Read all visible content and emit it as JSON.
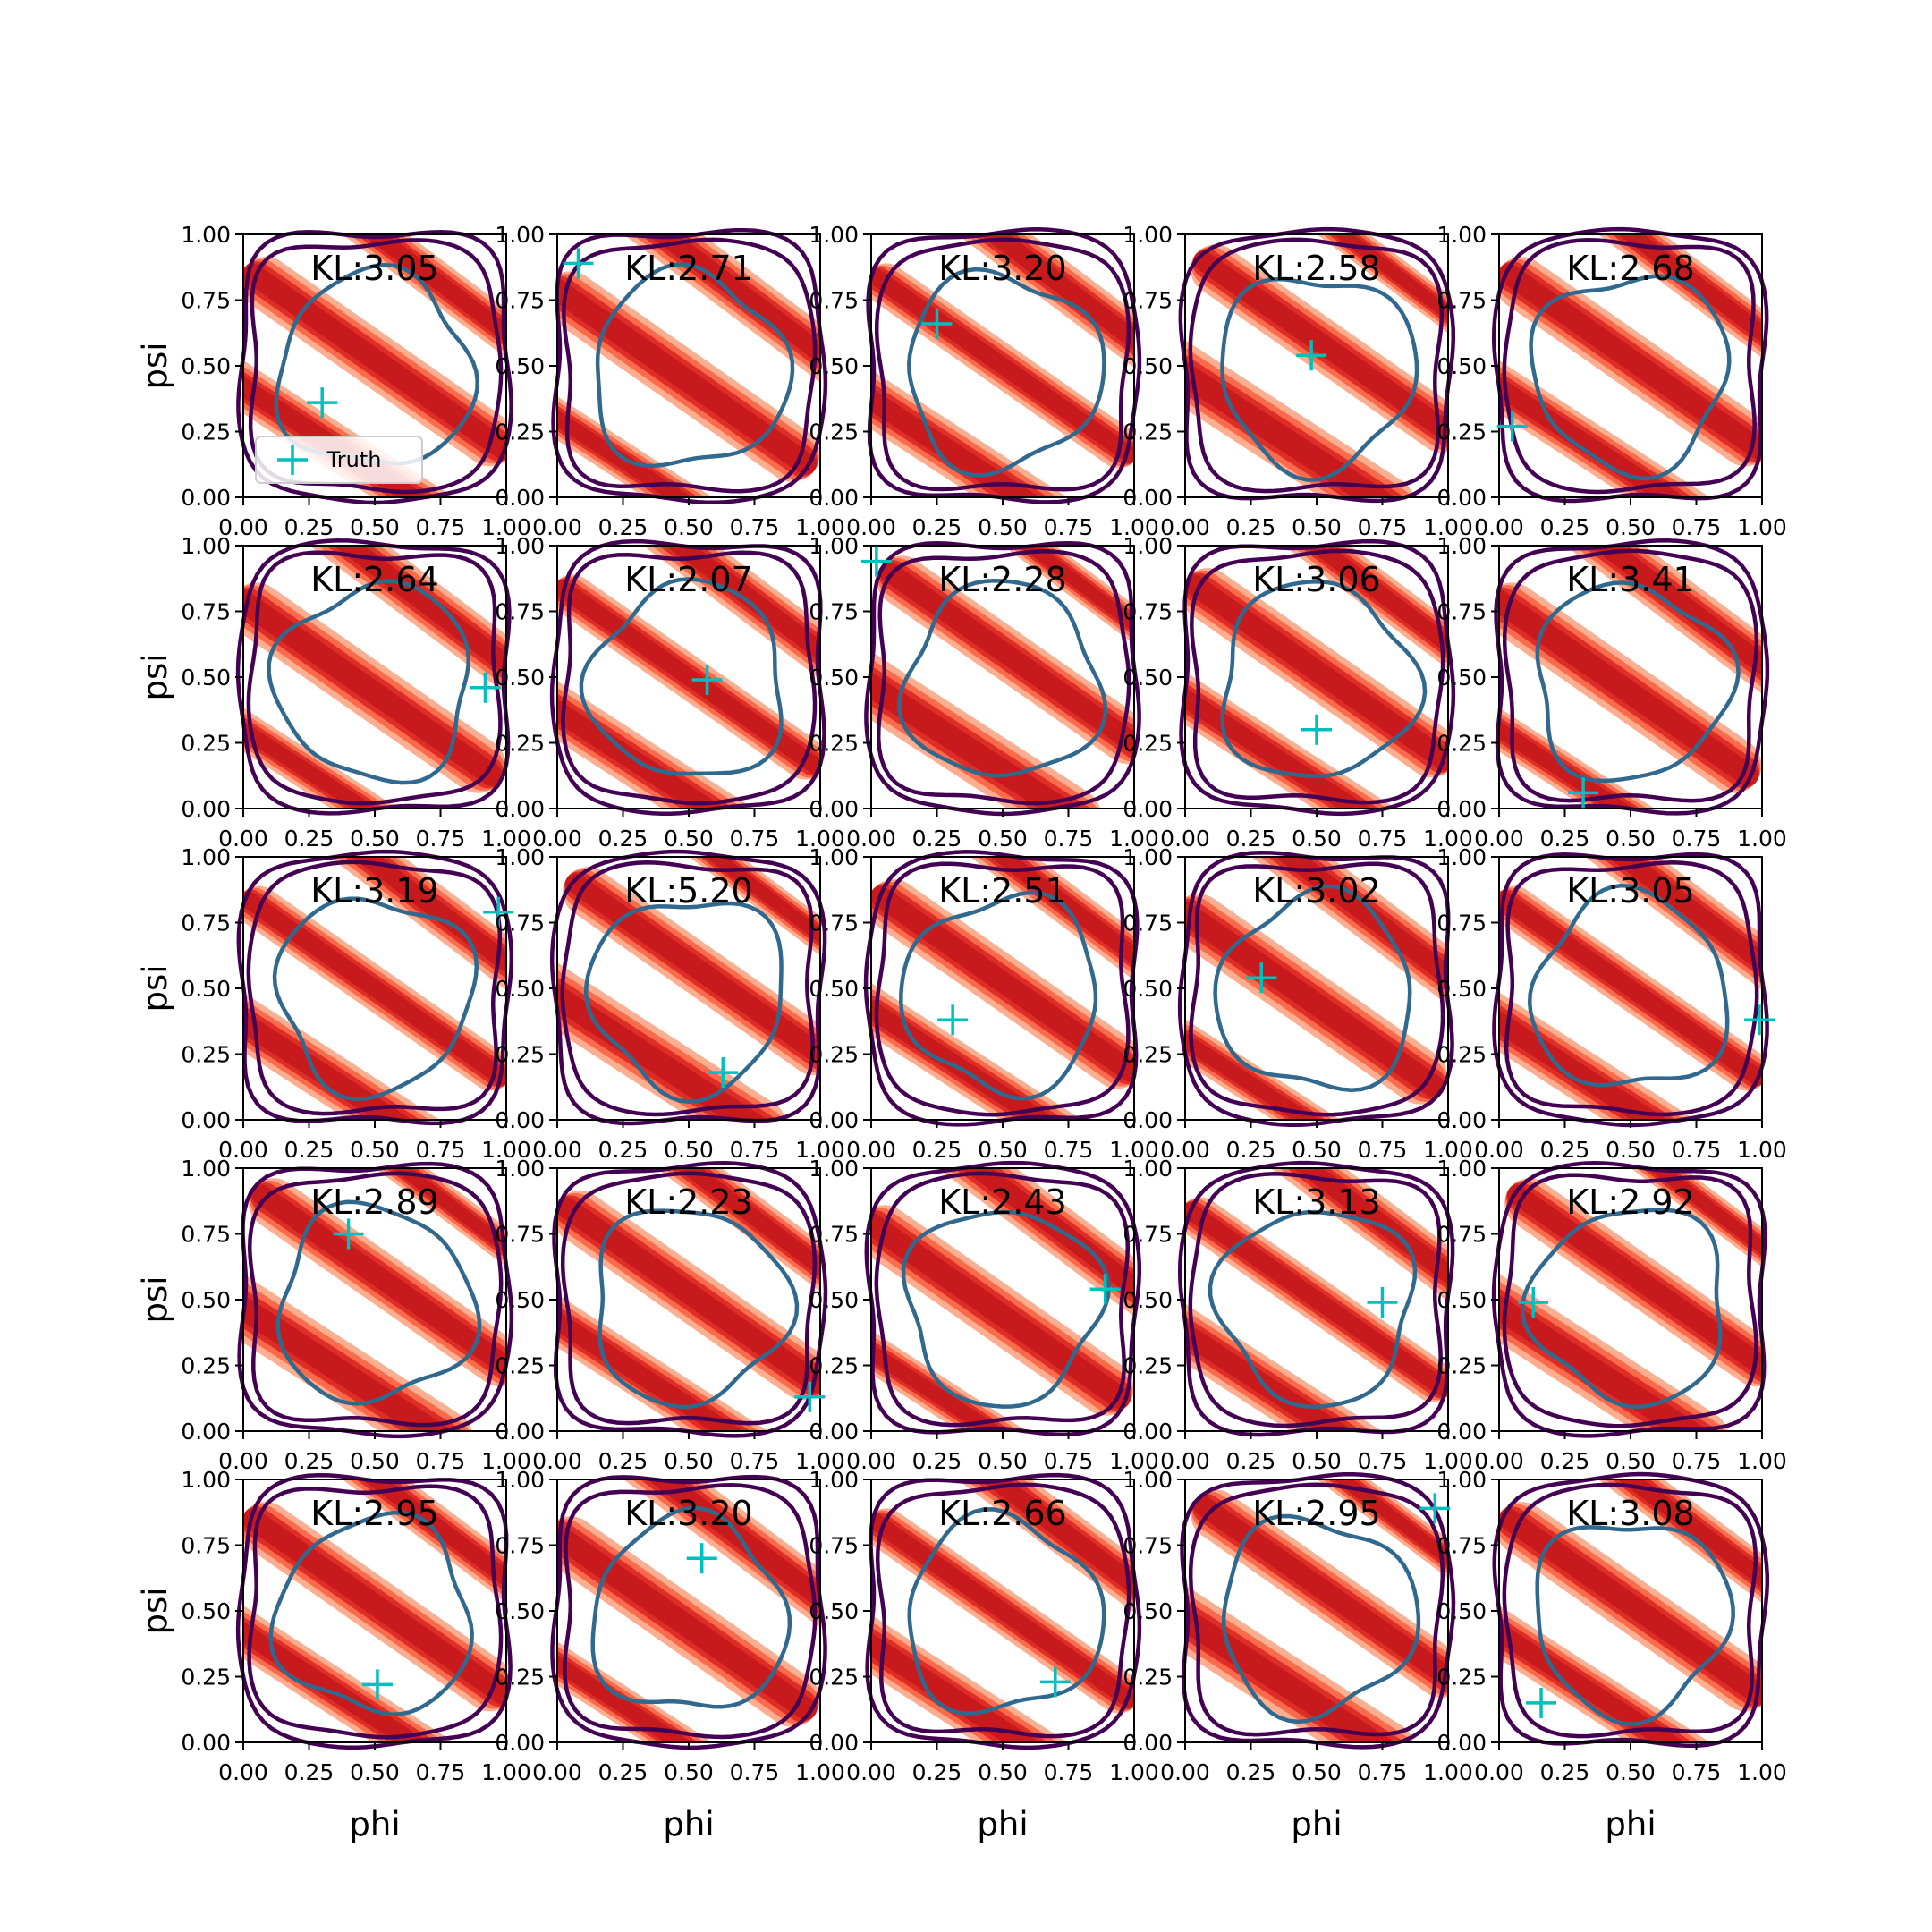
{
  "chart_data": {
    "type": "contour-grid",
    "rows": 5,
    "cols": 5,
    "xlabel": "phi",
    "ylabel": "psi",
    "xlim": [
      0,
      1
    ],
    "ylim": [
      0,
      1
    ],
    "ticks": [
      "0.00",
      "0.25",
      "0.50",
      "0.75",
      "1.00"
    ],
    "tick_values": [
      0,
      0.25,
      0.5,
      0.75,
      1
    ],
    "legend": {
      "label": "Truth",
      "placement": "lower-left",
      "panel": 0
    },
    "colors": {
      "truth_marker": "#00bfbf",
      "inner_contour": "#31688e",
      "outer_contour": "#440154",
      "density_fill": [
        "#fee5d9",
        "#fcae91",
        "#fb6a4a",
        "#de2d26",
        "#c81a1c"
      ]
    },
    "panels": [
      {
        "kl": "KL:3.05",
        "truth": [
          0.3,
          0.36
        ],
        "variant": 0
      },
      {
        "kl": "KL:2.71",
        "truth": [
          0.08,
          0.89
        ],
        "variant": 1
      },
      {
        "kl": "KL:3.20",
        "truth": [
          0.25,
          0.66
        ],
        "variant": 2
      },
      {
        "kl": "KL:2.58",
        "truth": [
          0.48,
          0.54
        ],
        "variant": 3
      },
      {
        "kl": "KL:2.68",
        "truth": [
          0.05,
          0.27
        ],
        "variant": 0
      },
      {
        "kl": "KL:2.64",
        "truth": [
          0.92,
          0.46
        ],
        "variant": 1
      },
      {
        "kl": "KL:2.07",
        "truth": [
          0.57,
          0.49
        ],
        "variant": 2
      },
      {
        "kl": "KL:2.28",
        "truth": [
          0.02,
          0.94
        ],
        "variant": 3
      },
      {
        "kl": "KL:3.06",
        "truth": [
          0.5,
          0.3
        ],
        "variant": 0
      },
      {
        "kl": "KL:3.41",
        "truth": [
          0.32,
          0.06
        ],
        "variant": 1
      },
      {
        "kl": "KL:3.19",
        "truth": [
          0.97,
          0.79
        ],
        "variant": 2
      },
      {
        "kl": "KL:5.20",
        "truth": [
          0.63,
          0.18
        ],
        "variant": 3
      },
      {
        "kl": "KL:2.51",
        "truth": [
          0.31,
          0.38
        ],
        "variant": 0
      },
      {
        "kl": "KL:3.02",
        "truth": [
          0.29,
          0.54
        ],
        "variant": 1
      },
      {
        "kl": "KL:3.05",
        "truth": [
          0.99,
          0.38
        ],
        "variant": 2
      },
      {
        "kl": "KL:2.89",
        "truth": [
          0.4,
          0.75
        ],
        "variant": 3
      },
      {
        "kl": "KL:2.23",
        "truth": [
          0.96,
          0.13
        ],
        "variant": 0
      },
      {
        "kl": "KL:2.43",
        "truth": [
          0.89,
          0.54
        ],
        "variant": 1
      },
      {
        "kl": "KL:3.13",
        "truth": [
          0.75,
          0.49
        ],
        "variant": 2
      },
      {
        "kl": "KL:2.92",
        "truth": [
          0.13,
          0.49
        ],
        "variant": 3
      },
      {
        "kl": "KL:2.95",
        "truth": [
          0.51,
          0.22
        ],
        "variant": 0
      },
      {
        "kl": "KL:3.20",
        "truth": [
          0.55,
          0.7
        ],
        "variant": 1
      },
      {
        "kl": "KL:2.66",
        "truth": [
          0.7,
          0.23
        ],
        "variant": 2
      },
      {
        "kl": "KL:2.95",
        "truth": [
          0.95,
          0.89
        ],
        "variant": 3
      },
      {
        "kl": "KL:3.08",
        "truth": [
          0.16,
          0.15
        ],
        "variant": 0
      }
    ]
  }
}
